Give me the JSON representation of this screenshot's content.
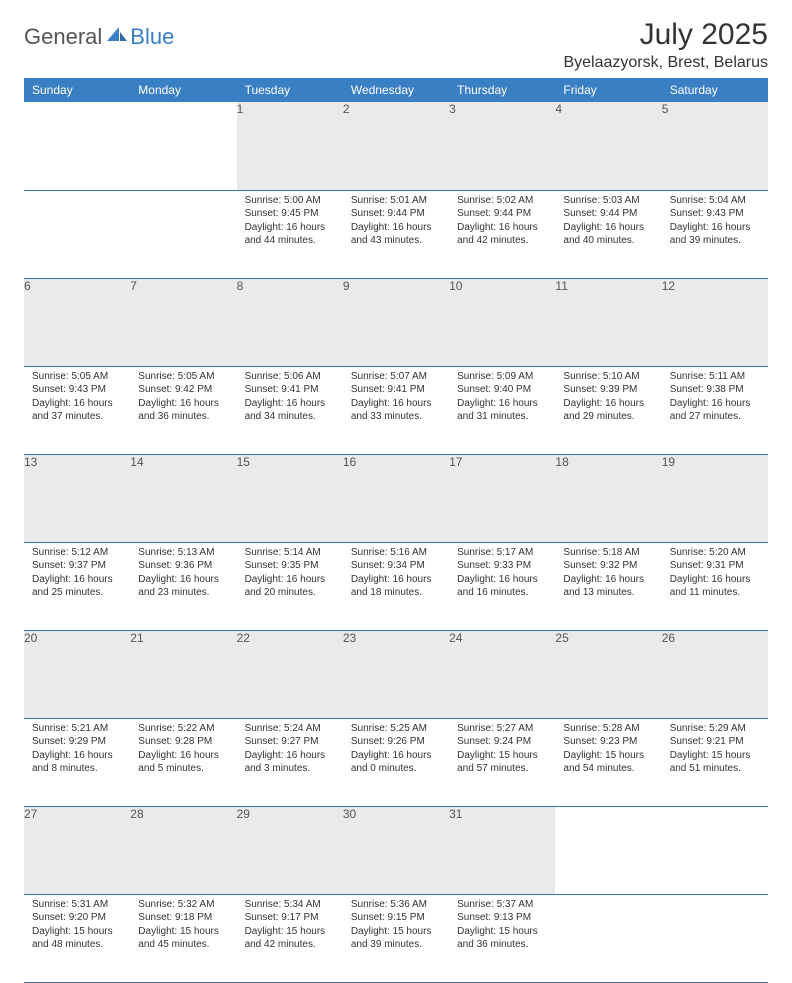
{
  "brand": {
    "part1": "General",
    "part2": "Blue"
  },
  "title": "July 2025",
  "location": "Byelaazyorsk, Brest, Belarus",
  "header_bg": "#3a7fc4",
  "header_fg": "#ffffff",
  "daynum_bg": "#e9eaeb",
  "border_color": "#3a6fa8",
  "weekdays": [
    "Sunday",
    "Monday",
    "Tuesday",
    "Wednesday",
    "Thursday",
    "Friday",
    "Saturday"
  ],
  "weeks": [
    {
      "nums": [
        "",
        "",
        "1",
        "2",
        "3",
        "4",
        "5"
      ],
      "cells": [
        null,
        null,
        {
          "sunrise": "5:00 AM",
          "sunset": "9:45 PM",
          "dl": "16 hours and 44 minutes."
        },
        {
          "sunrise": "5:01 AM",
          "sunset": "9:44 PM",
          "dl": "16 hours and 43 minutes."
        },
        {
          "sunrise": "5:02 AM",
          "sunset": "9:44 PM",
          "dl": "16 hours and 42 minutes."
        },
        {
          "sunrise": "5:03 AM",
          "sunset": "9:44 PM",
          "dl": "16 hours and 40 minutes."
        },
        {
          "sunrise": "5:04 AM",
          "sunset": "9:43 PM",
          "dl": "16 hours and 39 minutes."
        }
      ]
    },
    {
      "nums": [
        "6",
        "7",
        "8",
        "9",
        "10",
        "11",
        "12"
      ],
      "cells": [
        {
          "sunrise": "5:05 AM",
          "sunset": "9:43 PM",
          "dl": "16 hours and 37 minutes."
        },
        {
          "sunrise": "5:05 AM",
          "sunset": "9:42 PM",
          "dl": "16 hours and 36 minutes."
        },
        {
          "sunrise": "5:06 AM",
          "sunset": "9:41 PM",
          "dl": "16 hours and 34 minutes."
        },
        {
          "sunrise": "5:07 AM",
          "sunset": "9:41 PM",
          "dl": "16 hours and 33 minutes."
        },
        {
          "sunrise": "5:09 AM",
          "sunset": "9:40 PM",
          "dl": "16 hours and 31 minutes."
        },
        {
          "sunrise": "5:10 AM",
          "sunset": "9:39 PM",
          "dl": "16 hours and 29 minutes."
        },
        {
          "sunrise": "5:11 AM",
          "sunset": "9:38 PM",
          "dl": "16 hours and 27 minutes."
        }
      ]
    },
    {
      "nums": [
        "13",
        "14",
        "15",
        "16",
        "17",
        "18",
        "19"
      ],
      "cells": [
        {
          "sunrise": "5:12 AM",
          "sunset": "9:37 PM",
          "dl": "16 hours and 25 minutes."
        },
        {
          "sunrise": "5:13 AM",
          "sunset": "9:36 PM",
          "dl": "16 hours and 23 minutes."
        },
        {
          "sunrise": "5:14 AM",
          "sunset": "9:35 PM",
          "dl": "16 hours and 20 minutes."
        },
        {
          "sunrise": "5:16 AM",
          "sunset": "9:34 PM",
          "dl": "16 hours and 18 minutes."
        },
        {
          "sunrise": "5:17 AM",
          "sunset": "9:33 PM",
          "dl": "16 hours and 16 minutes."
        },
        {
          "sunrise": "5:18 AM",
          "sunset": "9:32 PM",
          "dl": "16 hours and 13 minutes."
        },
        {
          "sunrise": "5:20 AM",
          "sunset": "9:31 PM",
          "dl": "16 hours and 11 minutes."
        }
      ]
    },
    {
      "nums": [
        "20",
        "21",
        "22",
        "23",
        "24",
        "25",
        "26"
      ],
      "cells": [
        {
          "sunrise": "5:21 AM",
          "sunset": "9:29 PM",
          "dl": "16 hours and 8 minutes."
        },
        {
          "sunrise": "5:22 AM",
          "sunset": "9:28 PM",
          "dl": "16 hours and 5 minutes."
        },
        {
          "sunrise": "5:24 AM",
          "sunset": "9:27 PM",
          "dl": "16 hours and 3 minutes."
        },
        {
          "sunrise": "5:25 AM",
          "sunset": "9:26 PM",
          "dl": "16 hours and 0 minutes."
        },
        {
          "sunrise": "5:27 AM",
          "sunset": "9:24 PM",
          "dl": "15 hours and 57 minutes."
        },
        {
          "sunrise": "5:28 AM",
          "sunset": "9:23 PM",
          "dl": "15 hours and 54 minutes."
        },
        {
          "sunrise": "5:29 AM",
          "sunset": "9:21 PM",
          "dl": "15 hours and 51 minutes."
        }
      ]
    },
    {
      "nums": [
        "27",
        "28",
        "29",
        "30",
        "31",
        "",
        ""
      ],
      "cells": [
        {
          "sunrise": "5:31 AM",
          "sunset": "9:20 PM",
          "dl": "15 hours and 48 minutes."
        },
        {
          "sunrise": "5:32 AM",
          "sunset": "9:18 PM",
          "dl": "15 hours and 45 minutes."
        },
        {
          "sunrise": "5:34 AM",
          "sunset": "9:17 PM",
          "dl": "15 hours and 42 minutes."
        },
        {
          "sunrise": "5:36 AM",
          "sunset": "9:15 PM",
          "dl": "15 hours and 39 minutes."
        },
        {
          "sunrise": "5:37 AM",
          "sunset": "9:13 PM",
          "dl": "15 hours and 36 minutes."
        },
        null,
        null
      ]
    }
  ]
}
